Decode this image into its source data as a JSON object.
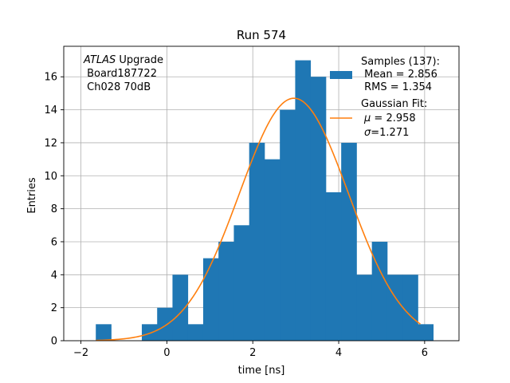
{
  "chart_data": {
    "type": "bar",
    "title": "Run 574",
    "xlabel": "time [ns]",
    "ylabel": "Entries",
    "xlim": [
      -2.4,
      6.8
    ],
    "ylim": [
      0,
      17.85
    ],
    "xticks": [
      -2,
      0,
      2,
      4,
      6
    ],
    "yticks": [
      0,
      2,
      4,
      6,
      8,
      10,
      12,
      14,
      16
    ],
    "grid": true,
    "bin_width": 0.357,
    "bin_edges": [
      -1.654,
      -1.297,
      -0.94,
      -0.583,
      -0.226,
      0.131,
      0.488,
      0.845,
      1.202,
      1.559,
      1.916,
      2.273,
      2.63,
      2.987,
      3.344,
      3.701,
      4.058,
      4.415,
      4.772,
      5.129,
      5.486,
      5.843,
      6.2
    ],
    "series": [
      {
        "name": "Samples (137):",
        "kind": "histogram",
        "color": "#1f77b4",
        "values": [
          1,
          0,
          0,
          1,
          2,
          4,
          1,
          5,
          6,
          7,
          12,
          11,
          14,
          17,
          16,
          9,
          12,
          4,
          6,
          4,
          4,
          1
        ]
      },
      {
        "name": "Gaussian Fit:",
        "kind": "line",
        "color": "#ff7f0e",
        "amplitude": 14.7,
        "mu": 2.958,
        "sigma": 1.271,
        "x_range": [
          -1.65,
          5.9
        ]
      }
    ],
    "annotation": {
      "italic": "ATLAS",
      "upright": " Upgrade",
      "line2": " Board187722",
      "line3": " Ch028 70dB"
    },
    "legend": {
      "placement": "upper-right",
      "samples_lines": [
        "Samples (137):",
        " Mean = 2.856",
        " RMS = 1.354"
      ],
      "fit_lines": [
        "Gaussian Fit:"
      ],
      "fit_mu_value": " = 2.958",
      "fit_sigma_value": "=1.271",
      "fit_mu_symbol": "μ",
      "fit_sigma_symbol": "σ"
    }
  }
}
